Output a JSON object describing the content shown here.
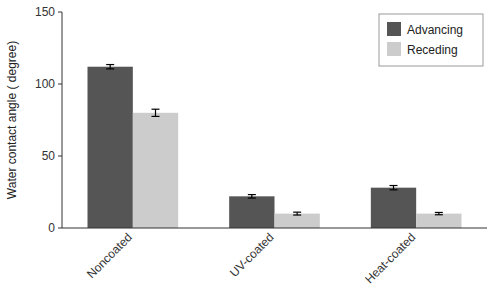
{
  "chart_data": {
    "type": "bar",
    "ylabel": "Water contact angle ( degree)",
    "categories": [
      "Noncoated",
      "UV-coated",
      "Heat-coated"
    ],
    "series": [
      {
        "name": "Advancing",
        "color": "#555555",
        "values": [
          112,
          22,
          28
        ],
        "errors": [
          1.5,
          1.2,
          1.5
        ]
      },
      {
        "name": "Receding",
        "color": "#cccccc",
        "values": [
          80,
          10,
          10
        ],
        "errors": [
          2.5,
          1.0,
          0.8
        ]
      }
    ],
    "ylim": [
      0,
      150
    ],
    "yticks": [
      0,
      50,
      100,
      150
    ],
    "grid": false,
    "legend": "upper right"
  }
}
